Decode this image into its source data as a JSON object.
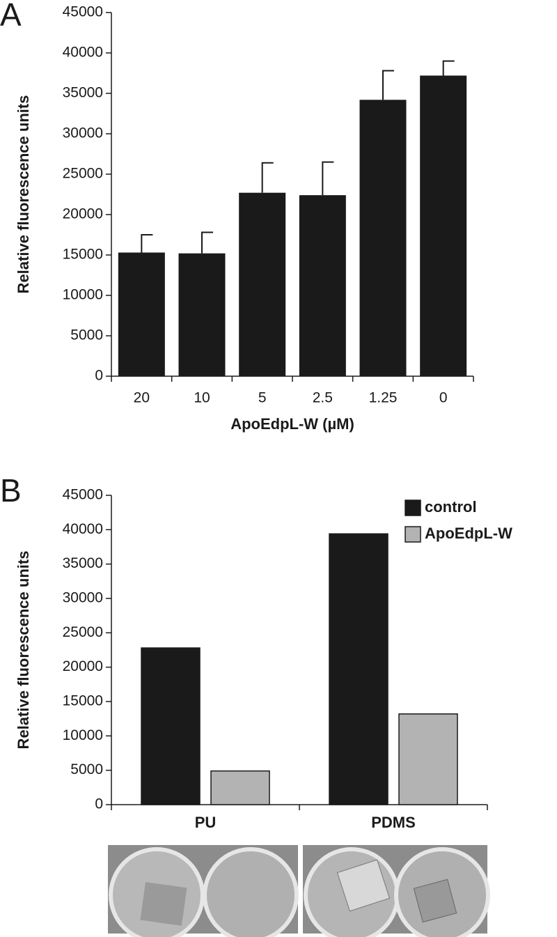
{
  "chart_data": [
    {
      "type": "bar",
      "panel_label": "A",
      "y_label": "Relative fluorescence units",
      "x_label": "ApoEdpL-W (µM)",
      "categories": [
        "20",
        "10",
        "5",
        "2.5",
        "1.25",
        "0"
      ],
      "values": [
        15300,
        15200,
        22700,
        22400,
        34200,
        37200
      ],
      "errors": [
        2200,
        2600,
        3700,
        4100,
        3600,
        1800
      ],
      "color": "#1a1a1a",
      "ylim": [
        0,
        45000
      ],
      "yticks": [
        0,
        5000,
        10000,
        15000,
        20000,
        25000,
        30000,
        35000,
        40000,
        45000
      ]
    },
    {
      "type": "bar",
      "panel_label": "B",
      "y_label": "Relative fluorescence units",
      "categories": [
        "PU",
        "PDMS"
      ],
      "series": [
        {
          "name": "control",
          "color": "#1a1a1a",
          "values": [
            22800,
            39400
          ]
        },
        {
          "name": "ApoEdpL-W",
          "color": "#b3b3b3",
          "values": [
            4900,
            13200
          ]
        }
      ],
      "legend": "upper right",
      "ylim": [
        0,
        45000
      ],
      "yticks": [
        0,
        5000,
        10000,
        15000,
        20000,
        25000,
        30000,
        35000,
        40000,
        45000
      ]
    }
  ]
}
